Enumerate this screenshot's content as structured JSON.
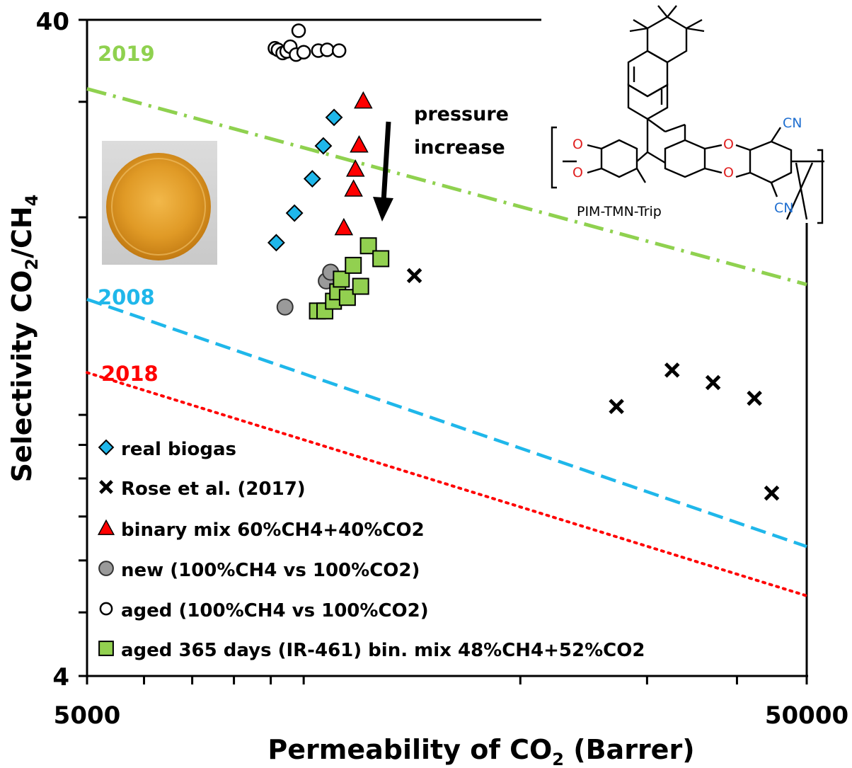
{
  "chart_data": {
    "type": "scatter",
    "title": "",
    "xlabel": "Permeability of CO",
    "xlabel_sub": "2",
    "xlabel_tail": " (Barrer)",
    "ylabel": "Selectivity CO",
    "ylabel_sub1": "2",
    "ylabel_mid": "/CH",
    "ylabel_sub2": "4",
    "x_scale": "log",
    "y_scale": "log",
    "xlim": [
      5000,
      50000
    ],
    "ylim": [
      4,
      40
    ],
    "x_ticks": [
      "5000",
      "50000"
    ],
    "y_ticks": [
      "4",
      "40"
    ],
    "legend_position": "bottom-left",
    "upper_bound_lines": [
      {
        "label": "2019",
        "color": "#8fd14f",
        "style": "dash-dot",
        "x": [
          5000,
          50000
        ],
        "y": [
          31.4,
          15.8
        ]
      },
      {
        "label": "2008",
        "color": "#1fb7ea",
        "style": "dashed",
        "x": [
          5000,
          50000
        ],
        "y": [
          15.0,
          6.3
        ]
      },
      {
        "label": "2018",
        "color": "#ff0000",
        "style": "dotted",
        "x": [
          5000,
          50000
        ],
        "y": [
          11.6,
          5.3
        ]
      }
    ],
    "series": [
      {
        "name": "real biogas",
        "marker": "diamond",
        "color": "#1fb7ea",
        "x": [
          9160,
          9710,
          10280,
          10650,
          11020
        ],
        "y": [
          18.3,
          20.3,
          22.9,
          25.7,
          28.4
        ]
      },
      {
        "name": "Rose et al. (2017)",
        "marker": "cross",
        "color": "#000000",
        "x": [
          14250,
          27200,
          32500,
          37050,
          42300,
          44700
        ],
        "y": [
          16.3,
          10.3,
          11.7,
          11.2,
          10.6,
          7.6
        ]
      },
      {
        "name": "binary mix 60%CH4+40%CO2",
        "marker": "triangle",
        "color": "#ff0000",
        "x": [
          11370,
          11730,
          11800,
          11940,
          12100
        ],
        "y": [
          19.3,
          22.1,
          23.7,
          25.8,
          30.1
        ]
      },
      {
        "name": "new (100%CH4 vs 100%CO2)",
        "marker": "circle-filled",
        "color": "#9a9a9a",
        "x": [
          9420,
          10750,
          10900
        ],
        "y": [
          14.6,
          16.0,
          16.5
        ]
      },
      {
        "name": "aged (100%CH4 vs 100%CO2)",
        "marker": "circle-open",
        "color": "#000000",
        "x": [
          9120,
          9210,
          9350,
          9470,
          9580,
          9760,
          9840,
          10000,
          10480,
          10780,
          11200
        ],
        "y": [
          36.2,
          36.0,
          35.6,
          35.8,
          36.4,
          35.4,
          38.5,
          35.7,
          35.9,
          36.0,
          35.9
        ]
      },
      {
        "name": "aged 365 days (IR-461) bin. mix 48%CH4+52%CO2",
        "marker": "square",
        "color": "#92d050",
        "x": [
          10450,
          10700,
          11000,
          11150,
          11280,
          11500,
          11720,
          12000,
          12300,
          12800
        ],
        "y": [
          14.4,
          14.4,
          14.9,
          15.4,
          16.1,
          15.1,
          16.9,
          15.7,
          18.1,
          17.3
        ]
      }
    ]
  },
  "annotation": {
    "line1": "pressure",
    "line2": "increase"
  },
  "structure": {
    "name": "PIM-TMN-Trip",
    "o_label": "O",
    "cn_label": "CN",
    "o_color": "#e02020",
    "cn_color": "#1f6fd0"
  },
  "photo": {
    "description_color": "#d99a1a"
  }
}
